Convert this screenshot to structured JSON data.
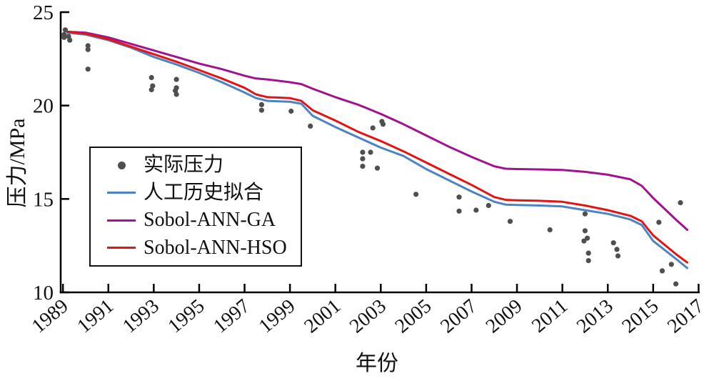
{
  "figure": {
    "xlabel": "年份",
    "ylabel": "压力/MPa"
  },
  "legend": {
    "items": [
      {
        "label": "实际压力",
        "marker": "dot",
        "color": "#4f4f4f"
      },
      {
        "label": "人工历史拟合",
        "marker": "line",
        "color": "#4a84c6"
      },
      {
        "label": "Sobol-ANN-GA",
        "marker": "line",
        "color": "#a1138e"
      },
      {
        "label": "Sobol-ANN-HSO",
        "marker": "line",
        "color": "#e01515"
      }
    ]
  },
  "chart_data": {
    "type": "line+scatter",
    "title": "",
    "xlabel": "年份",
    "ylabel": "压力/MPa",
    "xlim": [
      1988.9,
      2017.05
    ],
    "ylim": [
      10,
      25
    ],
    "xticks": [
      1989,
      1991,
      1993,
      1995,
      1997,
      1999,
      2001,
      2003,
      2005,
      2007,
      2009,
      2011,
      2013,
      2015,
      2017
    ],
    "yticks": [
      10,
      15,
      20,
      25
    ],
    "grid": false,
    "legend_position": "lower-left",
    "axis_color": "#000000",
    "scatter": {
      "name": "实际压力",
      "color": "#4f4f4f",
      "points": [
        [
          1989.05,
          23.8
        ],
        [
          1989.1,
          24.05
        ],
        [
          1989.05,
          23.65
        ],
        [
          1989.25,
          23.7
        ],
        [
          1989.3,
          23.5
        ],
        [
          1990.1,
          23.2
        ],
        [
          1990.1,
          23.0
        ],
        [
          1990.1,
          21.95
        ],
        [
          1992.9,
          21.5
        ],
        [
          1992.95,
          21.05
        ],
        [
          1992.9,
          20.85
        ],
        [
          1994.0,
          21.4
        ],
        [
          1994.0,
          20.95
        ],
        [
          1993.95,
          20.8
        ],
        [
          1994.0,
          20.6
        ],
        [
          1997.75,
          20.05
        ],
        [
          1997.75,
          19.75
        ],
        [
          1999.05,
          19.7
        ],
        [
          1999.9,
          18.9
        ],
        [
          2002.2,
          17.5
        ],
        [
          2002.55,
          17.5
        ],
        [
          2002.2,
          17.15
        ],
        [
          2002.2,
          16.75
        ],
        [
          2002.85,
          16.65
        ],
        [
          2002.65,
          18.8
        ],
        [
          2003.05,
          19.15
        ],
        [
          2003.1,
          19.0
        ],
        [
          2004.55,
          15.25
        ],
        [
          2006.45,
          15.1
        ],
        [
          2006.45,
          14.35
        ],
        [
          2007.2,
          14.4
        ],
        [
          2007.75,
          14.65
        ],
        [
          2008.7,
          13.8
        ],
        [
          2010.45,
          13.35
        ],
        [
          2012.0,
          14.2
        ],
        [
          2012.0,
          13.3
        ],
        [
          2011.95,
          12.75
        ],
        [
          2012.1,
          12.9
        ],
        [
          2012.15,
          12.1
        ],
        [
          2012.15,
          11.7
        ],
        [
          2013.25,
          12.65
        ],
        [
          2013.4,
          12.3
        ],
        [
          2013.45,
          11.95
        ],
        [
          2015.25,
          13.75
        ],
        [
          2015.4,
          11.15
        ],
        [
          2015.8,
          11.5
        ],
        [
          2016.0,
          10.45
        ],
        [
          2016.2,
          14.8
        ]
      ]
    },
    "series": [
      {
        "name": "人工历史拟合",
        "color": "#4a84c6",
        "x": [
          1989.2,
          1990,
          1991,
          1992,
          1993,
          1994,
          1995,
          1996,
          1997,
          1997.5,
          1998,
          1999,
          1999.5,
          2000,
          2001,
          2002,
          2003,
          2004,
          2005,
          2006,
          2007,
          2008,
          2008.5,
          2009,
          2010,
          2011,
          2012,
          2013,
          2014,
          2014.5,
          2015,
          2016,
          2016.5
        ],
        "y": [
          23.9,
          23.8,
          23.5,
          23.1,
          22.6,
          22.2,
          21.75,
          21.25,
          20.7,
          20.4,
          20.25,
          20.2,
          20.1,
          19.45,
          18.85,
          18.3,
          17.75,
          17.3,
          16.6,
          16.0,
          15.4,
          14.85,
          14.7,
          14.68,
          14.65,
          14.6,
          14.4,
          14.2,
          13.9,
          13.6,
          12.75,
          11.8,
          11.3
        ]
      },
      {
        "name": "Sobol-ANN-GA",
        "color": "#a1138e",
        "x": [
          1989.2,
          1990,
          1991,
          1992,
          1993,
          1994,
          1995,
          1996,
          1997,
          1997.5,
          1998,
          1999,
          1999.5,
          2000,
          2001,
          2002,
          2003,
          2004,
          2005,
          2006,
          2007,
          2008,
          2008.5,
          2009,
          2010,
          2011,
          2012,
          2013,
          2014,
          2014.5,
          2015,
          2016,
          2016.5
        ],
        "y": [
          23.95,
          23.9,
          23.65,
          23.3,
          22.95,
          22.6,
          22.25,
          21.95,
          21.6,
          21.45,
          21.4,
          21.25,
          21.15,
          20.9,
          20.45,
          20.05,
          19.55,
          19.0,
          18.4,
          17.8,
          17.25,
          16.75,
          16.62,
          16.6,
          16.58,
          16.55,
          16.45,
          16.3,
          16.05,
          15.7,
          15.05,
          13.9,
          13.35
        ]
      },
      {
        "name": "Sobol-ANN-HSO",
        "color": "#e01515",
        "x": [
          1989.2,
          1990,
          1991,
          1992,
          1993,
          1994,
          1995,
          1996,
          1997,
          1997.5,
          1998,
          1999,
          1999.5,
          2000,
          2001,
          2002,
          2003,
          2004,
          2005,
          2006,
          2007,
          2008,
          2008.5,
          2009,
          2010,
          2011,
          2012,
          2013,
          2014,
          2014.5,
          2015,
          2016,
          2016.5
        ],
        "y": [
          23.95,
          23.85,
          23.55,
          23.15,
          22.75,
          22.35,
          21.9,
          21.45,
          20.95,
          20.6,
          20.45,
          20.4,
          20.25,
          19.75,
          19.2,
          18.6,
          18.1,
          17.55,
          16.95,
          16.35,
          15.75,
          15.1,
          14.95,
          14.93,
          14.9,
          14.85,
          14.65,
          14.4,
          14.1,
          13.8,
          13.05,
          12.05,
          11.6
        ]
      }
    ]
  }
}
